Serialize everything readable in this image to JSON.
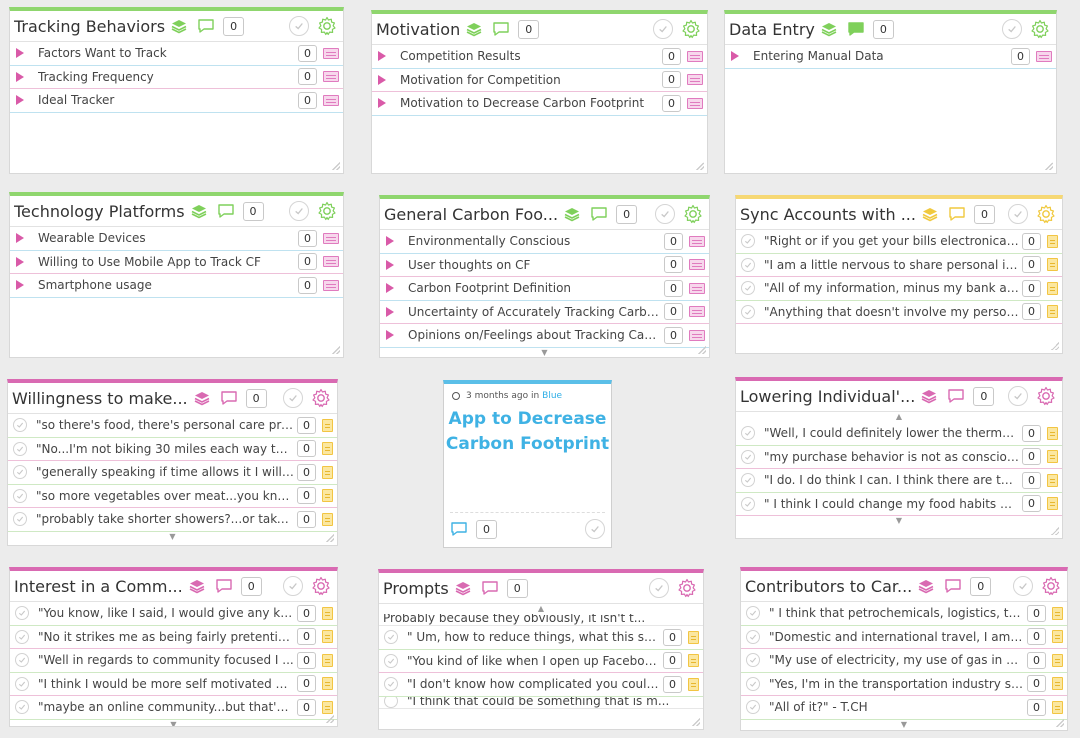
{
  "colors": {
    "green": "#8fd66e",
    "yellow": "#f6d874",
    "pink": "#d96ab2",
    "blue": "#5bbfe8"
  },
  "cards": {
    "tracking_behaviors": {
      "title": "Tracking Behaviors",
      "count": "0",
      "rows": [
        {
          "text": "Factors Want to Track",
          "count": "0"
        },
        {
          "text": "Tracking Frequency",
          "count": "0"
        },
        {
          "text": "Ideal Tracker",
          "count": "0"
        }
      ]
    },
    "motivation": {
      "title": "Motivation",
      "count": "0",
      "rows": [
        {
          "text": "Competition Results",
          "count": "0"
        },
        {
          "text": "Motivation for Competition",
          "count": "0"
        },
        {
          "text": "Motivation to Decrease Carbon Footprint",
          "count": "0"
        }
      ]
    },
    "data_entry": {
      "title": "Data Entry",
      "count": "0",
      "rows": [
        {
          "text": "Entering Manual Data",
          "count": "0"
        }
      ]
    },
    "technology_platforms": {
      "title": "Technology Platforms",
      "count": "0",
      "rows": [
        {
          "text": "Wearable Devices",
          "count": "0"
        },
        {
          "text": "Willing to Use Mobile App to Track CF",
          "count": "0"
        },
        {
          "text": "Smartphone usage",
          "count": "0"
        }
      ]
    },
    "general_carbon": {
      "title": "General Carbon Foo...",
      "count": "0",
      "rows": [
        {
          "text": "Environmentally Conscious",
          "count": "0"
        },
        {
          "text": "User thoughts on CF",
          "count": "0"
        },
        {
          "text": "Carbon Footprint Definition",
          "count": "0"
        },
        {
          "text": "Uncertainty of Accurately Tracking Carbo...",
          "count": "0"
        },
        {
          "text": "Opinions on/Feelings about Tracking Carb...",
          "count": "0"
        }
      ]
    },
    "sync_accounts": {
      "title": "Sync Accounts with ...",
      "count": "0",
      "rows": [
        {
          "text": "\"Right or if you get your bills electronicall...",
          "count": "0"
        },
        {
          "text": "\"I am a little nervous to share personal in...",
          "count": "0"
        },
        {
          "text": "\"All of my information, minus my bank ac...",
          "count": "0"
        },
        {
          "text": "\"Anything that doesn't involve my person...",
          "count": "0"
        }
      ]
    },
    "willingness": {
      "title": "Willingness to make...",
      "count": "0",
      "rows": [
        {
          "text": "\"so there's food, there's personal care pro...",
          "count": "0"
        },
        {
          "text": "\"No...I'm not biking 30 miles each way to ...",
          "count": "0"
        },
        {
          "text": "\"generally speaking if time allows it I will ...",
          "count": "0"
        },
        {
          "text": "\"so more vegetables over meat...you kno...",
          "count": "0"
        },
        {
          "text": "\"probably take shorter showers?...or take ...",
          "count": "0"
        }
      ]
    },
    "lowering": {
      "title": "Lowering Individual'...",
      "count": "0",
      "rows": [
        {
          "text": "\"Well, I could definitely lower the thermos...",
          "count": "0"
        },
        {
          "text": "\"my purchase behavior is not as consciou...",
          "count": "0"
        },
        {
          "text": "\"I do. I do think I can. I think there are thin...",
          "count": "0"
        },
        {
          "text": "\" I think I could change my food habits an...",
          "count": "0"
        }
      ]
    },
    "interest": {
      "title": "Interest in a Comm...",
      "count": "0",
      "rows": [
        {
          "text": "\"You know, like I said, I would give any kin...",
          "count": "0"
        },
        {
          "text": "\"No it strikes me as being fairly pretentio...",
          "count": "0"
        },
        {
          "text": "\"Well in regards to community focused I ...",
          "count": "0"
        },
        {
          "text": "\"I think I would be more self motivated ov...",
          "count": "0"
        },
        {
          "text": "\"maybe an online community...but that's ...",
          "count": "0"
        }
      ]
    },
    "prompts": {
      "title": "Prompts",
      "count": "0",
      "top_partial": "Probably because they obviously, it isn't t...",
      "bottom_partial": "\"I think that could be something that is m...",
      "rows": [
        {
          "text": "\" Um, how to reduce things, what this sor...",
          "count": "0"
        },
        {
          "text": "\"You kind of like when I open up Faceboo...",
          "count": "0"
        },
        {
          "text": "\"I don't know how complicated you could...",
          "count": "0"
        }
      ]
    },
    "contributors": {
      "title": "Contributors to Car...",
      "count": "0",
      "rows": [
        {
          "text": "\" I think that petrochemicals, logistics, tra...",
          "count": "0"
        },
        {
          "text": "\"Domestic and international travel, I am t...",
          "count": "0"
        },
        {
          "text": "\"My use of electricity, my use of gas in co...",
          "count": "0"
        },
        {
          "text": "\"Yes, I'm in the transportation industry so ...",
          "count": "0"
        },
        {
          "text": "\"All of it?\" - T.CH",
          "count": "0"
        }
      ]
    }
  },
  "center": {
    "time": "3 months ago in",
    "swatch": "Blue",
    "title": "App to Decrease Carbon Footprint",
    "count": "0"
  }
}
